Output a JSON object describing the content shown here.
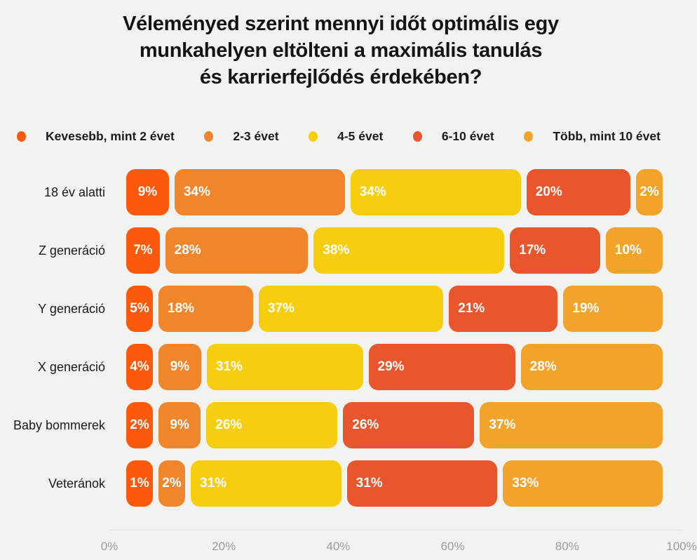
{
  "title": {
    "line1": "Véleményed szerint mennyi időt optimális egy",
    "line2": "munkahelyen eltölteni a maximális tanulás",
    "line3": "és karrierfejlődés érdekében?",
    "full": "Véleményed szerint mennyi időt optimális egy munkahelyen eltölteni a maximális tanulás és karrierfejlődés érdekében?"
  },
  "colors": {
    "background": "#F2F2F1",
    "title_text": "#141414",
    "row_label_text": "#191919",
    "segment_text": "#FFFFFF",
    "axis_text": "#9B9B9B",
    "axis_line": "#E3E2E0"
  },
  "chart_data": {
    "type": "bar",
    "variant": "horizontal-stacked",
    "title": "Véleményed szerint mennyi időt optimális egy munkahelyen eltölteni a maximális tanulás és karrierfejlődés érdekében?",
    "value_suffix": "%",
    "legend_position": "top",
    "grid": false,
    "categories": [
      "18 év alatti",
      "Z generáció",
      "Y generáció",
      "X generáció",
      "Baby bommerek",
      "Veteránok"
    ],
    "series": [
      {
        "name": "Kevesebb, mint 2 évet",
        "color": "#FB5A0D",
        "values": [
          9,
          7,
          5,
          4,
          2,
          1
        ]
      },
      {
        "name": "2-3 évet",
        "color": "#F0862B",
        "values": [
          34,
          28,
          18,
          9,
          9,
          2
        ]
      },
      {
        "name": "4-5 évet",
        "color": "#F7CE0F",
        "values": [
          34,
          38,
          37,
          31,
          26,
          31
        ]
      },
      {
        "name": "6-10 évet",
        "color": "#E9552D",
        "values": [
          20,
          17,
          21,
          29,
          26,
          31
        ]
      },
      {
        "name": "Több, mint 10 évet",
        "color": "#F1A32B",
        "values": [
          2,
          10,
          19,
          28,
          37,
          33
        ]
      }
    ],
    "x_axis": {
      "ticks": [
        "0%",
        "20%",
        "40%",
        "60%",
        "80%",
        "100%"
      ],
      "range": [
        0,
        100
      ]
    }
  }
}
